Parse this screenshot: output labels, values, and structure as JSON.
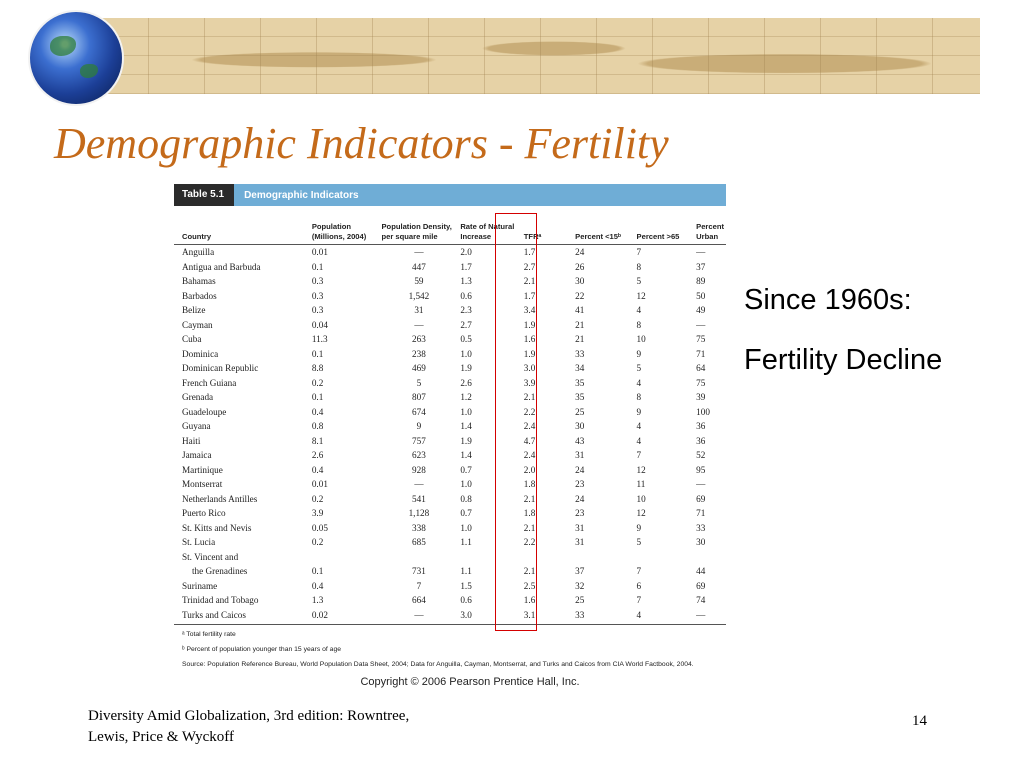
{
  "slide": {
    "title": "Demographic Indicators - Fertility",
    "side_text": [
      "Since 1960s:",
      "Fertility Decline"
    ],
    "footer": [
      "Diversity Amid Globalization, 3rd edition:  Rowntree,",
      "Lewis, Price & Wyckoff"
    ],
    "page_number": "14",
    "colors": {
      "title": "#c46a1a",
      "highlight": "#d40000",
      "table_header": "#6fadd6"
    }
  },
  "table": {
    "number": "Table 5.1",
    "name": "Demographic Indicators",
    "columns": [
      "Country",
      "Population (Millions, 2004)",
      "Population Density, per square mile",
      "Rate of Natural Increase",
      "TFRᵃ",
      "Percent <15ᵇ",
      "Percent >65",
      "Percent Urban"
    ],
    "rows": [
      [
        "Anguilla",
        "0.01",
        "—",
        "2.0",
        "1.7",
        "24",
        "7",
        "—"
      ],
      [
        "Antigua and Barbuda",
        "0.1",
        "447",
        "1.7",
        "2.7",
        "26",
        "8",
        "37"
      ],
      [
        "Bahamas",
        "0.3",
        "59",
        "1.3",
        "2.1",
        "30",
        "5",
        "89"
      ],
      [
        "Barbados",
        "0.3",
        "1,542",
        "0.6",
        "1.7",
        "22",
        "12",
        "50"
      ],
      [
        "Belize",
        "0.3",
        "31",
        "2.3",
        "3.4",
        "41",
        "4",
        "49"
      ],
      [
        "Cayman",
        "0.04",
        "—",
        "2.7",
        "1.9",
        "21",
        "8",
        "—"
      ],
      [
        "Cuba",
        "11.3",
        "263",
        "0.5",
        "1.6",
        "21",
        "10",
        "75"
      ],
      [
        "Dominica",
        "0.1",
        "238",
        "1.0",
        "1.9",
        "33",
        "9",
        "71"
      ],
      [
        "Dominican Republic",
        "8.8",
        "469",
        "1.9",
        "3.0",
        "34",
        "5",
        "64"
      ],
      [
        "French Guiana",
        "0.2",
        "5",
        "2.6",
        "3.9",
        "35",
        "4",
        "75"
      ],
      [
        "Grenada",
        "0.1",
        "807",
        "1.2",
        "2.1",
        "35",
        "8",
        "39"
      ],
      [
        "Guadeloupe",
        "0.4",
        "674",
        "1.0",
        "2.2",
        "25",
        "9",
        "100"
      ],
      [
        "Guyana",
        "0.8",
        "9",
        "1.4",
        "2.4",
        "30",
        "4",
        "36"
      ],
      [
        "Haiti",
        "8.1",
        "757",
        "1.9",
        "4.7",
        "43",
        "4",
        "36"
      ],
      [
        "Jamaica",
        "2.6",
        "623",
        "1.4",
        "2.4",
        "31",
        "7",
        "52"
      ],
      [
        "Martinique",
        "0.4",
        "928",
        "0.7",
        "2.0",
        "24",
        "12",
        "95"
      ],
      [
        "Montserrat",
        "0.01",
        "—",
        "1.0",
        "1.8",
        "23",
        "11",
        "—"
      ],
      [
        "Netherlands Antilles",
        "0.2",
        "541",
        "0.8",
        "2.1",
        "24",
        "10",
        "69"
      ],
      [
        "Puerto Rico",
        "3.9",
        "1,128",
        "0.7",
        "1.8",
        "23",
        "12",
        "71"
      ],
      [
        "St. Kitts and Nevis",
        "0.05",
        "338",
        "1.0",
        "2.1",
        "31",
        "9",
        "33"
      ],
      [
        "St. Lucia",
        "0.2",
        "685",
        "1.1",
        "2.2",
        "31",
        "5",
        "30"
      ],
      [
        "St. Vincent and",
        "",
        "",
        "",
        "",
        "",
        "",
        ""
      ],
      [
        "the Grenadines",
        "0.1",
        "731",
        "1.1",
        "2.1",
        "37",
        "7",
        "44"
      ],
      [
        "Suriname",
        "0.4",
        "7",
        "1.5",
        "2.5",
        "32",
        "6",
        "69"
      ],
      [
        "Trinidad and Tobago",
        "1.3",
        "664",
        "0.6",
        "1.6",
        "25",
        "7",
        "74"
      ],
      [
        "Turks and Caicos",
        "0.02",
        "—",
        "3.0",
        "3.1",
        "33",
        "4",
        "—"
      ]
    ],
    "footnotes": [
      "ᵃ Total fertility rate",
      "ᵇ Percent of population younger than 15 years of age",
      "Source: Population Reference Bureau, World Population Data Sheet, 2004; Data for Anguilla, Cayman, Montserrat, and Turks and Caicos from CIA World Factbook, 2004."
    ],
    "copyright": "Copyright © 2006 Pearson Prentice Hall, Inc."
  }
}
